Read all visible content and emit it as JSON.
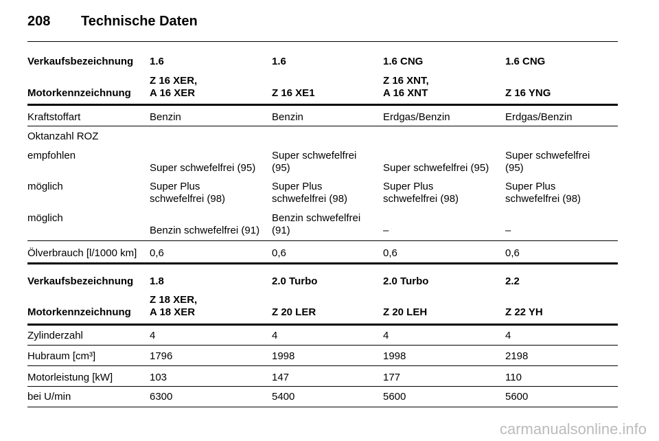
{
  "header": {
    "page_number": "208",
    "title": "Technische Daten"
  },
  "tables": [
    {
      "header_rows": [
        {
          "label": "Verkaufsbezeichnung",
          "cells": [
            "1.6",
            "1.6",
            "1.6 CNG",
            "1.6 CNG"
          ]
        },
        {
          "label": "Motorkennzeichnung",
          "cells": [
            "Z 16 XER,\nA 16 XER",
            "Z 16 XE1",
            "Z 16 XNT,\nA 16 XNT",
            "Z 16 YNG"
          ]
        }
      ],
      "rows": [
        {
          "label": "Kraftstoffart",
          "cells": [
            "Benzin",
            "Benzin",
            "Erdgas/Benzin",
            "Erdgas/Benzin"
          ]
        },
        {
          "label": "Oktanzahl ROZ",
          "cells": []
        },
        {
          "label": "empfohlen",
          "cells": [
            "Super schwefelfrei (95)",
            "Super schwefelfrei\n(95)",
            "Super schwefelfrei (95)",
            "Super schwefelfrei\n(95)"
          ]
        },
        {
          "label": "möglich",
          "cells": [
            "Super Plus\nschwefelfrei (98)",
            "Super Plus\nschwefelfrei (98)",
            "Super Plus\nschwefelfrei (98)",
            "Super Plus\nschwefelfrei (98)"
          ]
        },
        {
          "label": "möglich",
          "cells": [
            "Benzin schwefelfrei (91)",
            "Benzin schwefelfrei\n(91)",
            "–",
            "–"
          ]
        },
        {
          "label": "Ölverbrauch [l/1000 km]",
          "cells": [
            "0,6",
            "0,6",
            "0,6",
            "0,6"
          ]
        }
      ]
    },
    {
      "header_rows": [
        {
          "label": "Verkaufsbezeichnung",
          "cells": [
            "1.8",
            "2.0 Turbo",
            "2.0 Turbo",
            "2.2"
          ]
        },
        {
          "label": "Motorkennzeichnung",
          "cells": [
            "Z 18 XER,\nA 18 XER",
            "Z 20 LER",
            "Z 20 LEH",
            "Z 22 YH"
          ]
        }
      ],
      "rows": [
        {
          "label": "Zylinderzahl",
          "cells": [
            "4",
            "4",
            "4",
            "4"
          ]
        },
        {
          "label": "Hubraum [cm³]",
          "cells": [
            "1796",
            "1998",
            "1998",
            "2198"
          ]
        },
        {
          "label": "Motorleistung [kW]",
          "cells": [
            "103",
            "147",
            "177",
            "110"
          ]
        },
        {
          "label": "bei U/min",
          "cells": [
            "6300",
            "5400",
            "5600",
            "5600"
          ]
        }
      ]
    }
  ],
  "footer": {
    "watermark": "carmanualsonline.info"
  }
}
